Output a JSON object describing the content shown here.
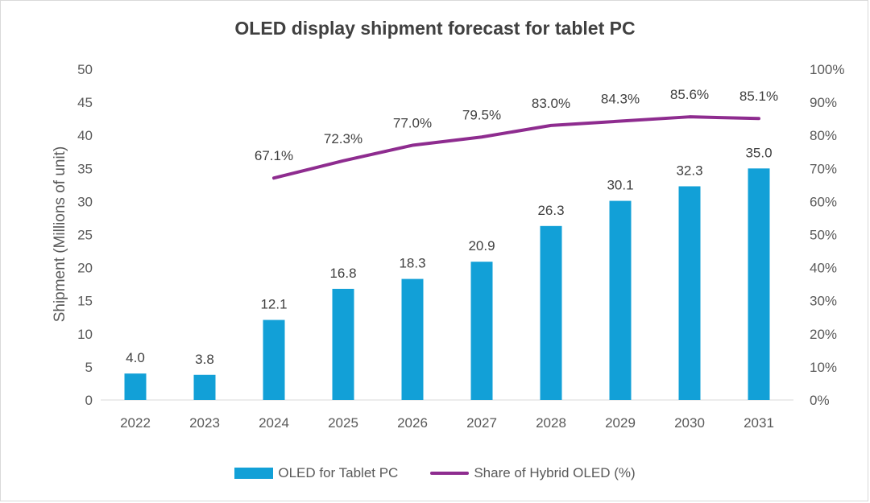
{
  "chart_data": {
    "type": "bar",
    "title": "OLED display shipment forecast for tablet PC",
    "ylabel": "Shipment (Millions of unit)",
    "xlabel": "",
    "categories": [
      "2022",
      "2023",
      "2024",
      "2025",
      "2026",
      "2027",
      "2028",
      "2029",
      "2030",
      "2031"
    ],
    "ylim": [
      0,
      50
    ],
    "yticks": [
      "0",
      "5",
      "10",
      "15",
      "20",
      "25",
      "30",
      "35",
      "40",
      "45",
      "50"
    ],
    "y2lim": [
      0,
      100
    ],
    "y2ticks": [
      "0%",
      "10%",
      "20%",
      "30%",
      "40%",
      "50%",
      "60%",
      "70%",
      "80%",
      "90%",
      "100%"
    ],
    "legend_position": "bottom",
    "grid": false,
    "series": [
      {
        "name": "OLED for Tablet PC",
        "type": "bar",
        "axis": "left",
        "color": "#12a0d7",
        "values": [
          4.0,
          3.8,
          12.1,
          16.8,
          18.3,
          20.9,
          26.3,
          30.1,
          32.3,
          35.0
        ],
        "labels": [
          "4.0",
          "3.8",
          "12.1",
          "16.8",
          "18.3",
          "20.9",
          "26.3",
          "30.1",
          "32.3",
          "35.0"
        ]
      },
      {
        "name": "Share of Hybrid OLED (%)",
        "type": "line",
        "axis": "right",
        "color": "#8e2c8f",
        "values": [
          null,
          null,
          67.1,
          72.3,
          77.0,
          79.5,
          83.0,
          84.3,
          85.6,
          85.1
        ],
        "labels": [
          "",
          "",
          "67.1%",
          "72.3%",
          "77.0%",
          "79.5%",
          "83.0%",
          "84.3%",
          "85.6%",
          "85.1%"
        ]
      }
    ]
  }
}
